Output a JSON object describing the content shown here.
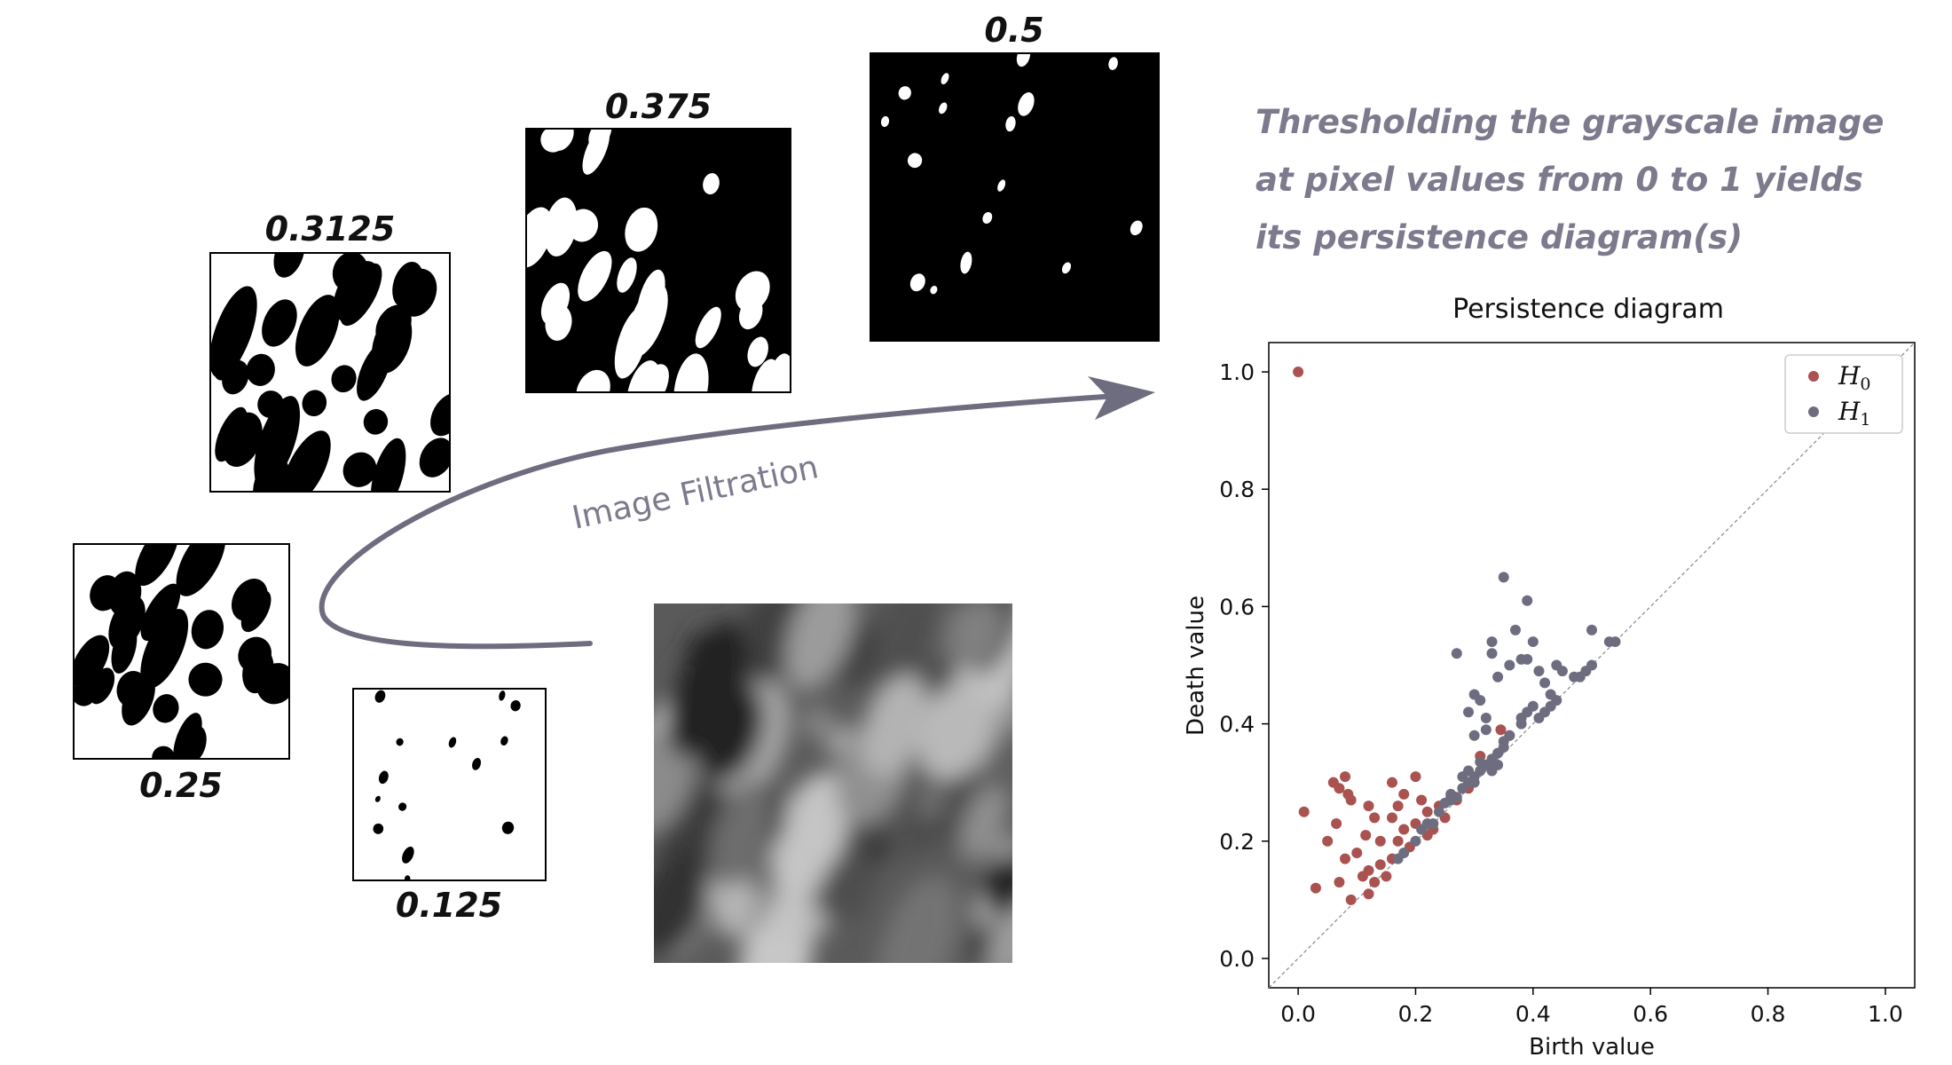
{
  "thresholds": {
    "t0125": "0.125",
    "t025": "0.25",
    "t03125": "0.3125",
    "t0375": "0.375",
    "t05": "0.5"
  },
  "arrow_label": "Image Filtration",
  "caption": [
    "Thresholding the grayscale image",
    "at pixel values from 0 to 1 yields",
    "its persistence diagram(s)"
  ],
  "colors": {
    "h0": "#a9524f",
    "h1": "#6e6d80",
    "arrow": "#6e6d80",
    "caption": "#7c7a8c"
  },
  "chart_data": {
    "type": "scatter",
    "title": "Persistence diagram",
    "xlabel": "Birth value",
    "ylabel": "Death value",
    "xlim": [
      0,
      1
    ],
    "ylim": [
      0,
      1
    ],
    "x_ticks": [
      "0.0",
      "0.2",
      "0.4",
      "0.6",
      "0.8",
      "1.0"
    ],
    "y_ticks": [
      "0.0",
      "0.2",
      "0.4",
      "0.6",
      "0.8",
      "1.0"
    ],
    "diagonal": true,
    "legend_position": "top-right",
    "series": [
      {
        "name": "H0",
        "name_base": "H",
        "name_sub": "0",
        "color": "#a9524f",
        "points": [
          [
            0.0,
            1.0
          ],
          [
            0.01,
            0.25
          ],
          [
            0.03,
            0.12
          ],
          [
            0.06,
            0.3
          ],
          [
            0.07,
            0.29
          ],
          [
            0.08,
            0.31
          ],
          [
            0.085,
            0.28
          ],
          [
            0.065,
            0.23
          ],
          [
            0.09,
            0.27
          ],
          [
            0.12,
            0.26
          ],
          [
            0.13,
            0.24
          ],
          [
            0.115,
            0.21
          ],
          [
            0.14,
            0.2
          ],
          [
            0.16,
            0.3
          ],
          [
            0.17,
            0.26
          ],
          [
            0.18,
            0.28
          ],
          [
            0.16,
            0.24
          ],
          [
            0.18,
            0.22
          ],
          [
            0.2,
            0.31
          ],
          [
            0.21,
            0.27
          ],
          [
            0.22,
            0.25
          ],
          [
            0.2,
            0.23
          ],
          [
            0.23,
            0.22
          ],
          [
            0.25,
            0.24
          ],
          [
            0.24,
            0.26
          ],
          [
            0.26,
            0.275
          ],
          [
            0.27,
            0.27
          ],
          [
            0.29,
            0.29
          ],
          [
            0.31,
            0.345
          ],
          [
            0.345,
            0.39
          ],
          [
            0.36,
            0.38
          ],
          [
            0.08,
            0.17
          ],
          [
            0.1,
            0.18
          ],
          [
            0.12,
            0.15
          ],
          [
            0.13,
            0.13
          ],
          [
            0.14,
            0.16
          ],
          [
            0.15,
            0.14
          ],
          [
            0.17,
            0.2
          ],
          [
            0.19,
            0.19
          ],
          [
            0.09,
            0.1
          ],
          [
            0.07,
            0.13
          ],
          [
            0.11,
            0.14
          ],
          [
            0.16,
            0.17
          ],
          [
            0.22,
            0.21
          ],
          [
            0.28,
            0.29
          ],
          [
            0.33,
            0.33
          ],
          [
            0.05,
            0.2
          ],
          [
            0.12,
            0.11
          ]
        ]
      },
      {
        "name": "H1",
        "name_base": "H",
        "name_sub": "1",
        "color": "#6e6d80",
        "points": [
          [
            0.17,
            0.17
          ],
          [
            0.18,
            0.18
          ],
          [
            0.2,
            0.2
          ],
          [
            0.21,
            0.22
          ],
          [
            0.22,
            0.23
          ],
          [
            0.23,
            0.23
          ],
          [
            0.24,
            0.25
          ],
          [
            0.25,
            0.265
          ],
          [
            0.26,
            0.28
          ],
          [
            0.27,
            0.275
          ],
          [
            0.28,
            0.29
          ],
          [
            0.29,
            0.3
          ],
          [
            0.3,
            0.31
          ],
          [
            0.31,
            0.32
          ],
          [
            0.32,
            0.33
          ],
          [
            0.33,
            0.34
          ],
          [
            0.34,
            0.35
          ],
          [
            0.35,
            0.36
          ],
          [
            0.26,
            0.27
          ],
          [
            0.29,
            0.32
          ],
          [
            0.3,
            0.3
          ],
          [
            0.31,
            0.335
          ],
          [
            0.33,
            0.32
          ],
          [
            0.34,
            0.33
          ],
          [
            0.28,
            0.31
          ],
          [
            0.27,
            0.52
          ],
          [
            0.35,
            0.65
          ],
          [
            0.39,
            0.61
          ],
          [
            0.34,
            0.48
          ],
          [
            0.33,
            0.54
          ],
          [
            0.33,
            0.52
          ],
          [
            0.37,
            0.56
          ],
          [
            0.36,
            0.5
          ],
          [
            0.38,
            0.51
          ],
          [
            0.39,
            0.51
          ],
          [
            0.4,
            0.54
          ],
          [
            0.41,
            0.49
          ],
          [
            0.42,
            0.47
          ],
          [
            0.43,
            0.45
          ],
          [
            0.44,
            0.5
          ],
          [
            0.45,
            0.49
          ],
          [
            0.47,
            0.48
          ],
          [
            0.48,
            0.48
          ],
          [
            0.49,
            0.49
          ],
          [
            0.5,
            0.5
          ],
          [
            0.5,
            0.56
          ],
          [
            0.53,
            0.54
          ],
          [
            0.54,
            0.54
          ],
          [
            0.4,
            0.43
          ],
          [
            0.41,
            0.41
          ],
          [
            0.42,
            0.42
          ],
          [
            0.43,
            0.43
          ],
          [
            0.39,
            0.42
          ],
          [
            0.38,
            0.41
          ],
          [
            0.3,
            0.45
          ],
          [
            0.31,
            0.44
          ],
          [
            0.32,
            0.41
          ],
          [
            0.29,
            0.42
          ],
          [
            0.3,
            0.38
          ],
          [
            0.32,
            0.39
          ],
          [
            0.35,
            0.37
          ],
          [
            0.36,
            0.38
          ],
          [
            0.38,
            0.4
          ],
          [
            0.44,
            0.44
          ]
        ]
      }
    ]
  }
}
